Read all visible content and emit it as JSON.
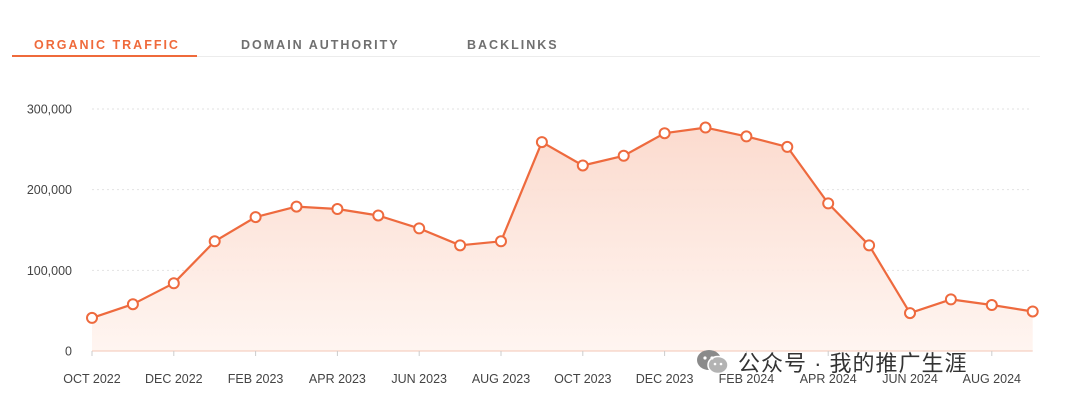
{
  "tabs": [
    {
      "label": "ORGANIC TRAFFIC",
      "active": true
    },
    {
      "label": "DOMAIN AUTHORITY",
      "active": false
    },
    {
      "label": "BACKLINKS",
      "active": false
    }
  ],
  "colors": {
    "accent": "#ef6a3b",
    "line": "#ee6a3e",
    "area_top": "#fbd9cc",
    "area_bottom": "#fff4ef",
    "grid": "#e2e2e2",
    "tick_text": "#444444"
  },
  "watermark": {
    "icon": "wechat-icon",
    "text": "公众号 · 我的推广生涯"
  },
  "chart_data": {
    "type": "area",
    "title": "",
    "xlabel": "",
    "ylabel": "",
    "ylim": [
      0,
      300000
    ],
    "yticks": [
      0,
      100000,
      200000,
      300000
    ],
    "ytick_labels": [
      "0",
      "100,000",
      "200,000",
      "300,000"
    ],
    "grid": true,
    "x": [
      "2022-10",
      "2022-11",
      "2022-12",
      "2023-01",
      "2023-02",
      "2023-03",
      "2023-04",
      "2023-05",
      "2023-06",
      "2023-07",
      "2023-08",
      "2023-09",
      "2023-10",
      "2023-11",
      "2023-12",
      "2024-01",
      "2024-02",
      "2024-03",
      "2024-04",
      "2024-05",
      "2024-06",
      "2024-07",
      "2024-08",
      "2024-09"
    ],
    "xtick_labels": [
      "OCT 2022",
      "",
      "DEC 2022",
      "",
      "FEB 2023",
      "",
      "APR 2023",
      "",
      "JUN 2023",
      "",
      "AUG 2023",
      "",
      "OCT 2023",
      "",
      "DEC 2023",
      "",
      "FEB 2024",
      "",
      "APR 2024",
      "",
      "JUN 2024",
      "",
      "AUG 2024",
      ""
    ],
    "series": [
      {
        "values": [
          41000,
          58000,
          84000,
          136000,
          166000,
          179000,
          176000,
          168000,
          152000,
          131000,
          136000,
          259000,
          230000,
          242000,
          270000,
          277000,
          266000,
          253000,
          183000,
          131000,
          47000,
          64000,
          57000,
          49000
        ]
      }
    ]
  }
}
